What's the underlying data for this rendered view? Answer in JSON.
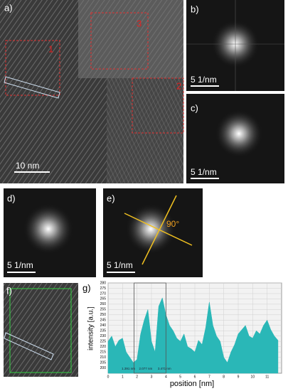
{
  "panels": {
    "a": {
      "label": "a)",
      "scale_bar": "10 nm",
      "regions": [
        "1",
        "2",
        "3"
      ]
    },
    "b": {
      "label": "b)",
      "scale_bar": "5 1/nm"
    },
    "c": {
      "label": "c)",
      "scale_bar": "5 1/nm"
    },
    "d": {
      "label": "d)",
      "scale_bar": "5 1/nm"
    },
    "e": {
      "label": "e)",
      "scale_bar": "5 1/nm",
      "angle": "90°"
    },
    "f": {
      "label": "f)"
    }
  },
  "chart_data": {
    "type": "area",
    "label": "g)",
    "x_label": "position [nm]",
    "y_label": "intensity [a.u.]",
    "x": [
      0,
      0.25,
      0.5,
      0.75,
      1,
      1.25,
      1.5,
      1.75,
      2,
      2.25,
      2.5,
      2.75,
      3,
      3.25,
      3.5,
      3.75,
      4,
      4.25,
      4.5,
      4.75,
      5,
      5.25,
      5.5,
      5.75,
      6,
      6.25,
      6.5,
      6.75,
      7,
      7.25,
      7.5,
      7.75,
      8,
      8.25,
      8.5,
      8.75,
      9,
      9.25,
      9.5,
      9.75,
      10,
      10.25,
      10.5,
      10.75,
      11,
      11.25,
      11.5,
      11.75
    ],
    "values": [
      225,
      230,
      220,
      226,
      228,
      215,
      210,
      205,
      208,
      232,
      245,
      255,
      225,
      215,
      258,
      266,
      250,
      240,
      235,
      228,
      225,
      232,
      220,
      218,
      215,
      226,
      222,
      238,
      262,
      240,
      230,
      225,
      210,
      205,
      215,
      222,
      232,
      236,
      240,
      230,
      228,
      235,
      232,
      240,
      245,
      236,
      230,
      226
    ],
    "color": "#2ab7b7",
    "xlim": [
      0,
      12
    ],
    "xticks": [
      0,
      1,
      2,
      3,
      4,
      5,
      6,
      7,
      8,
      9,
      10,
      11
    ],
    "ylim": [
      195,
      280
    ],
    "yticks": [
      200,
      205,
      210,
      215,
      220,
      225,
      230,
      235,
      240,
      245,
      250,
      255,
      260,
      265,
      270,
      275,
      280
    ],
    "grid": true,
    "annotations": [
      "1.391 nm",
      "2.077 nm",
      "3.471 nm"
    ]
  }
}
